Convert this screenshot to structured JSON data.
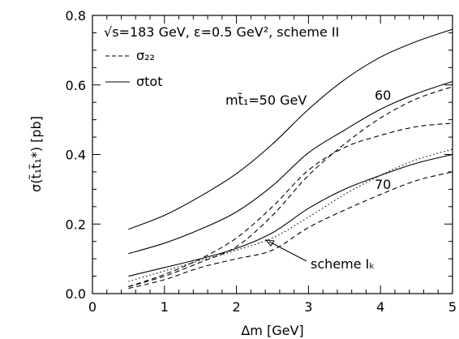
{
  "chart_data": {
    "type": "line",
    "title": "",
    "xlabel": "Δm [GeV]",
    "ylabel": "σ(t̃₁t̃₁*) [pb]",
    "xlim": [
      0,
      5
    ],
    "ylim": [
      0,
      0.8
    ],
    "x_ticks": [
      "0",
      "1",
      "2",
      "3",
      "4",
      "5"
    ],
    "y_ticks": [
      "0.0",
      "0.2",
      "0.4",
      "0.6",
      "0.8"
    ],
    "annotation_main": "√s=183 GeV, ε=0.5 GeV², scheme II",
    "legend": [
      {
        "label": "σ₂₂",
        "style": "dashed"
      },
      {
        "label": "σtot",
        "style": "solid"
      }
    ],
    "curve_labels": {
      "m50": "mt̃₁=50 GeV",
      "m60": "60",
      "m70": "70",
      "scheme": "scheme Iₖ"
    },
    "x": [
      0.5,
      1.0,
      1.5,
      2.0,
      2.5,
      3.0,
      3.5,
      4.0,
      4.5,
      5.0
    ],
    "series": [
      {
        "group": "50 GeV",
        "style": "solid",
        "values": [
          0.185,
          0.225,
          0.28,
          0.345,
          0.43,
          0.53,
          0.615,
          0.68,
          0.725,
          0.76
        ]
      },
      {
        "group": "50 GeV",
        "style": "dashed",
        "values": [
          0.02,
          0.055,
          0.1,
          0.16,
          0.25,
          0.355,
          0.42,
          0.455,
          0.48,
          0.49
        ]
      },
      {
        "group": "60 GeV",
        "style": "solid",
        "values": [
          0.115,
          0.145,
          0.185,
          0.235,
          0.31,
          0.405,
          0.47,
          0.53,
          0.575,
          0.61
        ]
      },
      {
        "group": "60 GeV",
        "style": "dashed",
        "values": [
          0.02,
          0.05,
          0.09,
          0.135,
          0.225,
          0.34,
          0.43,
          0.505,
          0.56,
          0.595
        ]
      },
      {
        "group": "70 GeV",
        "style": "solid",
        "values": [
          0.05,
          0.075,
          0.1,
          0.13,
          0.175,
          0.245,
          0.3,
          0.34,
          0.375,
          0.4
        ]
      },
      {
        "group": "70 GeV",
        "style": "dashed",
        "values": [
          0.015,
          0.04,
          0.075,
          0.1,
          0.125,
          0.19,
          0.24,
          0.285,
          0.325,
          0.35
        ]
      },
      {
        "group": "scheme Iₖ",
        "style": "dotted",
        "values": [
          0.035,
          0.065,
          0.095,
          0.125,
          0.16,
          0.22,
          0.285,
          0.34,
          0.385,
          0.415
        ]
      }
    ]
  }
}
